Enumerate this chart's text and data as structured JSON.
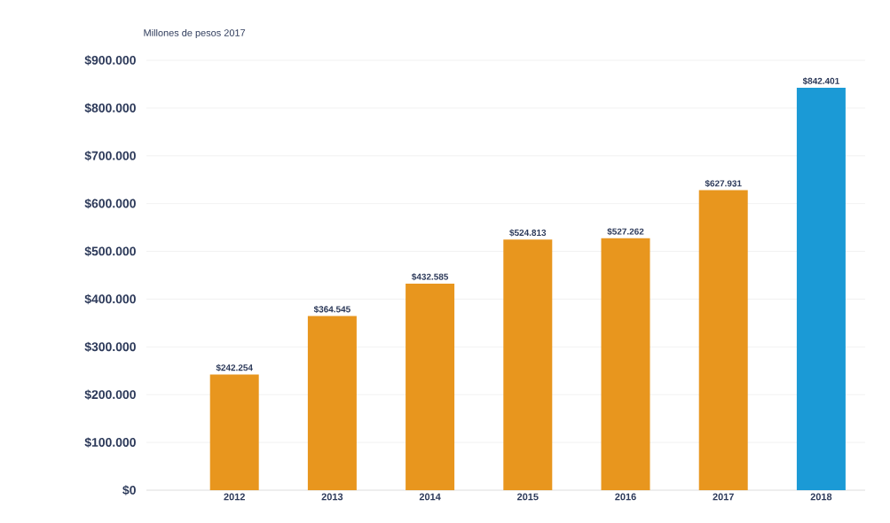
{
  "chart_data": {
    "type": "bar",
    "ylabel": "Millones de pesos 2017",
    "categories": [
      "2012",
      "2013",
      "2014",
      "2015",
      "2016",
      "2017",
      "2018"
    ],
    "values": [
      242254,
      364545,
      432585,
      524813,
      527262,
      627931,
      842401
    ],
    "value_labels": [
      "$242.254",
      "$364.545",
      "$432.585",
      "$524.813",
      "$527.262",
      "$627.931",
      "$842.401"
    ],
    "colors": [
      "#e8961e",
      "#e8961e",
      "#e8961e",
      "#e8961e",
      "#e8961e",
      "#e8961e",
      "#1b9ad6"
    ],
    "ylim": [
      0,
      900000
    ],
    "yticks": [
      {
        "value": 0,
        "label": "$0"
      },
      {
        "value": 100000,
        "label": "$100.000"
      },
      {
        "value": 200000,
        "label": "$200.000"
      },
      {
        "value": 300000,
        "label": "$300.000"
      },
      {
        "value": 400000,
        "label": "$400.000"
      },
      {
        "value": 500000,
        "label": "$500.000"
      },
      {
        "value": 600000,
        "label": "$600.000"
      },
      {
        "value": 700000,
        "label": "$700.000"
      },
      {
        "value": 800000,
        "label": "$800.000"
      },
      {
        "value": 900000,
        "label": "$900.000"
      }
    ],
    "grid": "y"
  }
}
